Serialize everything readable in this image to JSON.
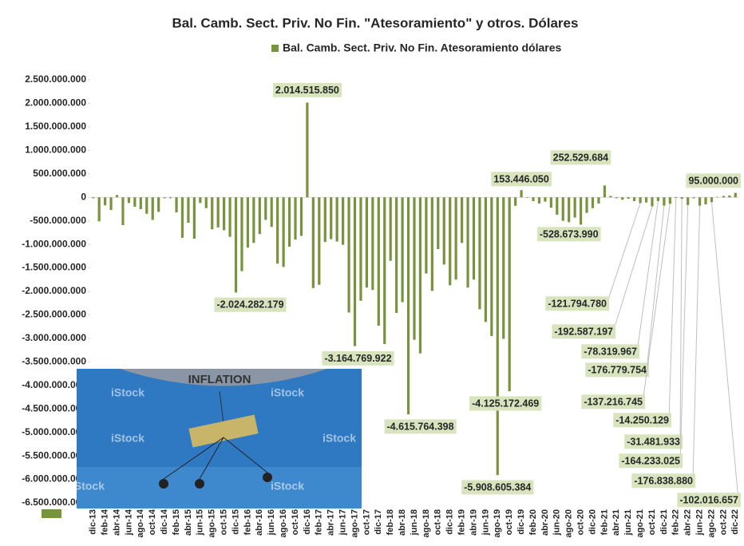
{
  "chart_data": {
    "type": "bar",
    "title": "Bal. Camb. Sect. Priv. No Fin. \"Atesoramiento\"  y otros. Dólares",
    "categories": [
      "dic-13",
      null,
      "feb-14",
      null,
      "abr-14",
      null,
      "jun-14",
      null,
      "ago-14",
      null,
      "oct-14",
      null,
      "dic-14",
      null,
      "feb-15",
      null,
      "abr-15",
      null,
      "jun-15",
      null,
      "ago-15",
      null,
      "oct-15",
      null,
      "dic-15",
      null,
      "feb-16",
      null,
      "abr-16",
      null,
      "jun-16",
      null,
      "ago-16",
      null,
      "oct-16",
      null,
      "dic-16",
      null,
      "feb-17",
      null,
      "abr-17",
      null,
      "jun-17",
      null,
      "ago-17",
      null,
      "oct-17",
      null,
      "dic-17",
      null,
      "feb-18",
      null,
      "abr-18",
      null,
      "jun-18",
      null,
      "ago-18",
      null,
      "oct-18",
      null,
      "dic-18",
      null,
      "feb-19",
      null,
      "abr-19",
      null,
      "jun-19",
      null,
      "ago-19",
      null,
      "oct-19",
      null,
      "dic-19",
      null,
      "feb-20",
      null,
      "abr-20",
      null,
      "jun-20",
      null,
      "ago-20",
      null,
      "oct-20",
      null,
      "dic-20",
      null,
      "feb-21",
      null,
      "abr-21",
      null,
      "jun-21",
      null,
      "ago-21",
      null,
      "oct-21",
      null,
      "dic-21",
      null,
      "feb-22",
      null,
      "abr-22",
      null,
      "jun-22",
      null,
      "ago-22",
      null,
      "oct-22",
      null,
      "dic-22"
    ],
    "series": [
      {
        "name": "Bal. Camb. Sect. Priv. No Fin. Atesoramiento dólares",
        "color": "#77933c",
        "values": [
          -20000000,
          -510000000,
          -170000000,
          -270000000,
          50000000,
          -590000000,
          -120000000,
          -200000000,
          -250000000,
          -350000000,
          -480000000,
          -310000000,
          -20000000,
          -20000000,
          -320000000,
          -860000000,
          -540000000,
          -880000000,
          -120000000,
          -230000000,
          -680000000,
          -640000000,
          -700000000,
          -840000000,
          -2024282179,
          -1570000000,
          -1070000000,
          -970000000,
          -780000000,
          -480000000,
          -630000000,
          -1410000000,
          -1480000000,
          -1050000000,
          -900000000,
          -820000000,
          2014515850,
          -1930000000,
          -1860000000,
          -950000000,
          -890000000,
          -940000000,
          -1010000000,
          -2450000000,
          -3164769922,
          -2200000000,
          -1920000000,
          -1970000000,
          -2730000000,
          -3120000000,
          -1350000000,
          -2460000000,
          -2230000000,
          -4615764398,
          -3030000000,
          -3320000000,
          -1620000000,
          -1990000000,
          -1100000000,
          -1430000000,
          -1870000000,
          -1750000000,
          -970000000,
          -1920000000,
          -1750000000,
          -2380000000,
          -2650000000,
          -2950000000,
          -5908605384,
          -3010000000,
          -4125172469,
          -180000000,
          153446050,
          -10000000,
          -80000000,
          -130000000,
          -90000000,
          -220000000,
          -370000000,
          -500000000,
          -528673990,
          -430000000,
          -580000000,
          -330000000,
          -230000000,
          -130000000,
          252529684,
          30000000,
          -20000000,
          -50000000,
          -30000000,
          -80000000,
          -121794780,
          -110000000,
          -192587197,
          -78319967,
          -176779754,
          -137216745,
          -14250129,
          -31481933,
          -164233025,
          -20000000,
          -176838880,
          -150000000,
          -102016657,
          10000000,
          30000000,
          40000000,
          95000000
        ],
        "value_labels": [
          null,
          null,
          null,
          null,
          null,
          null,
          null,
          null,
          null,
          null,
          null,
          null,
          null,
          null,
          null,
          null,
          null,
          null,
          null,
          null,
          null,
          null,
          null,
          null,
          "-2.024.282.179",
          null,
          null,
          null,
          null,
          null,
          null,
          null,
          null,
          null,
          null,
          null,
          "2.014.515.850",
          null,
          null,
          null,
          null,
          null,
          null,
          null,
          "-3.164.769.922",
          null,
          null,
          null,
          null,
          null,
          null,
          null,
          null,
          "-4.615.764.398",
          null,
          null,
          null,
          null,
          null,
          null,
          null,
          null,
          null,
          null,
          null,
          null,
          null,
          null,
          "-5.908.605.384",
          null,
          "-4.125.172.469",
          null,
          "153.446.050",
          null,
          null,
          null,
          null,
          null,
          null,
          null,
          "-528.673.990",
          null,
          null,
          null,
          null,
          null,
          "252.529.684",
          null,
          null,
          null,
          null,
          null,
          "-121.794.780",
          null,
          "-192.587.197",
          "-78.319.967",
          "-176.779.754",
          "-137.216.745",
          "-14.250.129",
          "-31.481.933",
          "-164.233.025",
          null,
          "-176.838.880",
          null,
          "-102.016.657",
          null,
          null,
          null,
          "95.000.000"
        ]
      }
    ],
    "ylim": [
      -6500000000,
      2500000000
    ],
    "yticks": [
      {
        "value": -6500000000,
        "label": "-6.500.000.000"
      },
      {
        "value": -6000000000,
        "label": "-6.000.000.000"
      },
      {
        "value": -5500000000,
        "label": "-5.500.000.000"
      },
      {
        "value": -5000000000,
        "label": "-5.000.000.000"
      },
      {
        "value": -4500000000,
        "label": "-4.500.000.000"
      },
      {
        "value": -4000000000,
        "label": "-4.000.000.000"
      },
      {
        "value": -3500000000,
        "label": "-3.500.000.000"
      },
      {
        "value": -3000000000,
        "label": "-3.000.000.000"
      },
      {
        "value": -2500000000,
        "label": "-2.500.000.000"
      },
      {
        "value": -2000000000,
        "label": "-2.000.000.000"
      },
      {
        "value": -1500000000,
        "label": "-1.500.000.000"
      },
      {
        "value": -1000000000,
        "label": "-1.000.000.000"
      },
      {
        "value": -500000000,
        "label": "-500.000.000"
      },
      0,
      {
        "value": 500000000,
        "label": "500.000.000"
      },
      {
        "value": 1000000000,
        "label": "1.000.000.000"
      },
      {
        "value": 1500000000,
        "label": "1.500.000.000"
      },
      {
        "value": 2000000000,
        "label": "2.000.000.000"
      },
      {
        "value": 2500000000,
        "label": "2.500.000.000"
      }
    ],
    "legend": "top",
    "inset_image": {
      "balloon": "INFLATION",
      "watermark": "iStock"
    }
  }
}
